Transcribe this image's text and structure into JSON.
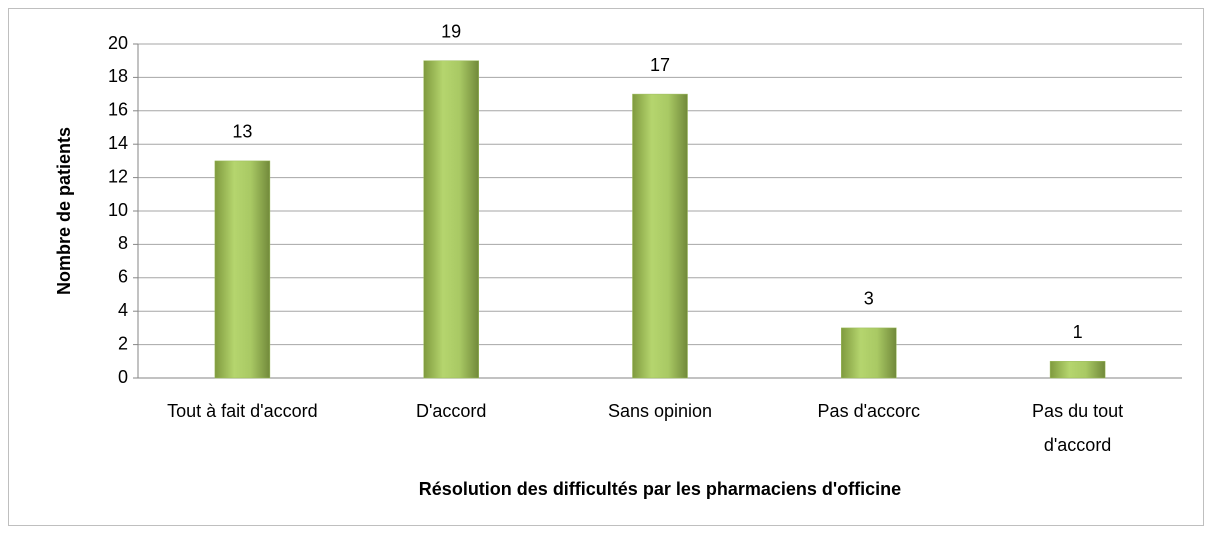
{
  "chart_data": {
    "type": "bar",
    "categories": [
      "Tout à fait d'accord",
      "D'accord",
      "Sans opinion",
      "Pas d'accorc",
      "Pas du tout\nd'accord"
    ],
    "values": [
      13,
      19,
      17,
      3,
      1
    ],
    "color": "#9bbb59",
    "xlabel": "Résolution des difficultés par les pharmaciens d'officine",
    "ylabel": "Nombre de patients",
    "ylim": [
      0,
      20
    ],
    "yticks": [
      0,
      2,
      4,
      6,
      8,
      10,
      12,
      14,
      16,
      18,
      20
    ],
    "grid": true
  }
}
